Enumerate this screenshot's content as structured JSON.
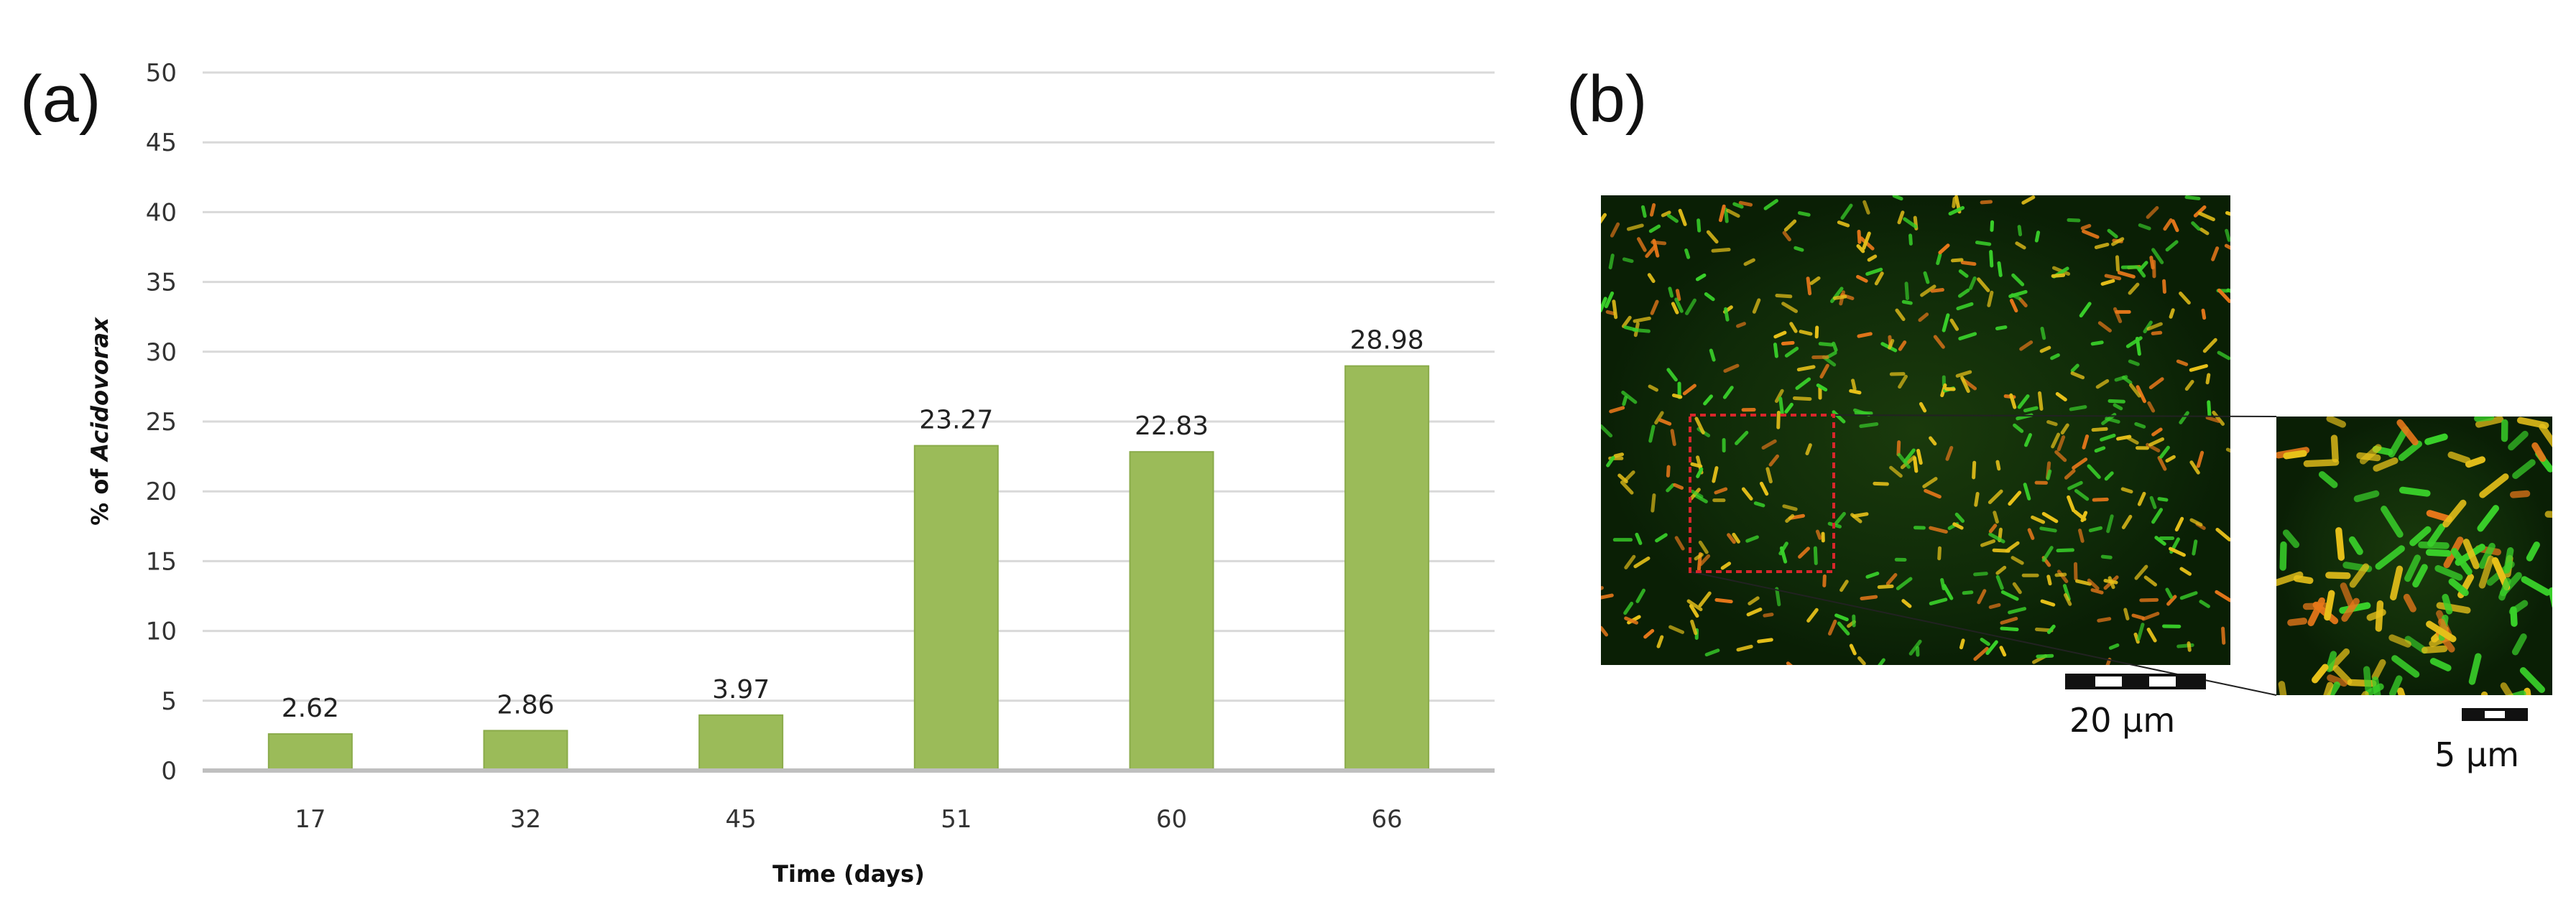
{
  "panel_a_label": "(a)",
  "panel_b_label": "(b)",
  "chart_data": {
    "type": "bar",
    "categories": [
      "17",
      "32",
      "45",
      "51",
      "60",
      "66"
    ],
    "values": [
      2.62,
      2.86,
      3.97,
      23.27,
      22.83,
      28.98
    ],
    "data_labels": [
      "2.62",
      "2.86",
      "3.97",
      "23.27",
      "22.83",
      "28.98"
    ],
    "xlabel": "Time  (days)",
    "ylabel_prefix": "% of ",
    "ylabel_italic": "Acidovorax",
    "ylim": [
      0,
      50
    ],
    "yticks": [
      0,
      5,
      10,
      15,
      20,
      25,
      30,
      35,
      40,
      45,
      50
    ],
    "grid": true,
    "colors": {
      "bar": "#9bbb59",
      "bar_edge": "#8aab4a",
      "grid": "#d9d9d9",
      "axis": "#bfbfbf"
    }
  },
  "micrograph": {
    "scale_main": "20 μm",
    "scale_inset": "5 μm",
    "colors": {
      "background": "#0f2a08",
      "green_cell": "#39d12a",
      "yellow_cell": "#e8c21a",
      "orange_cell": "#e8781a",
      "roi_box": "#d9262b"
    }
  }
}
